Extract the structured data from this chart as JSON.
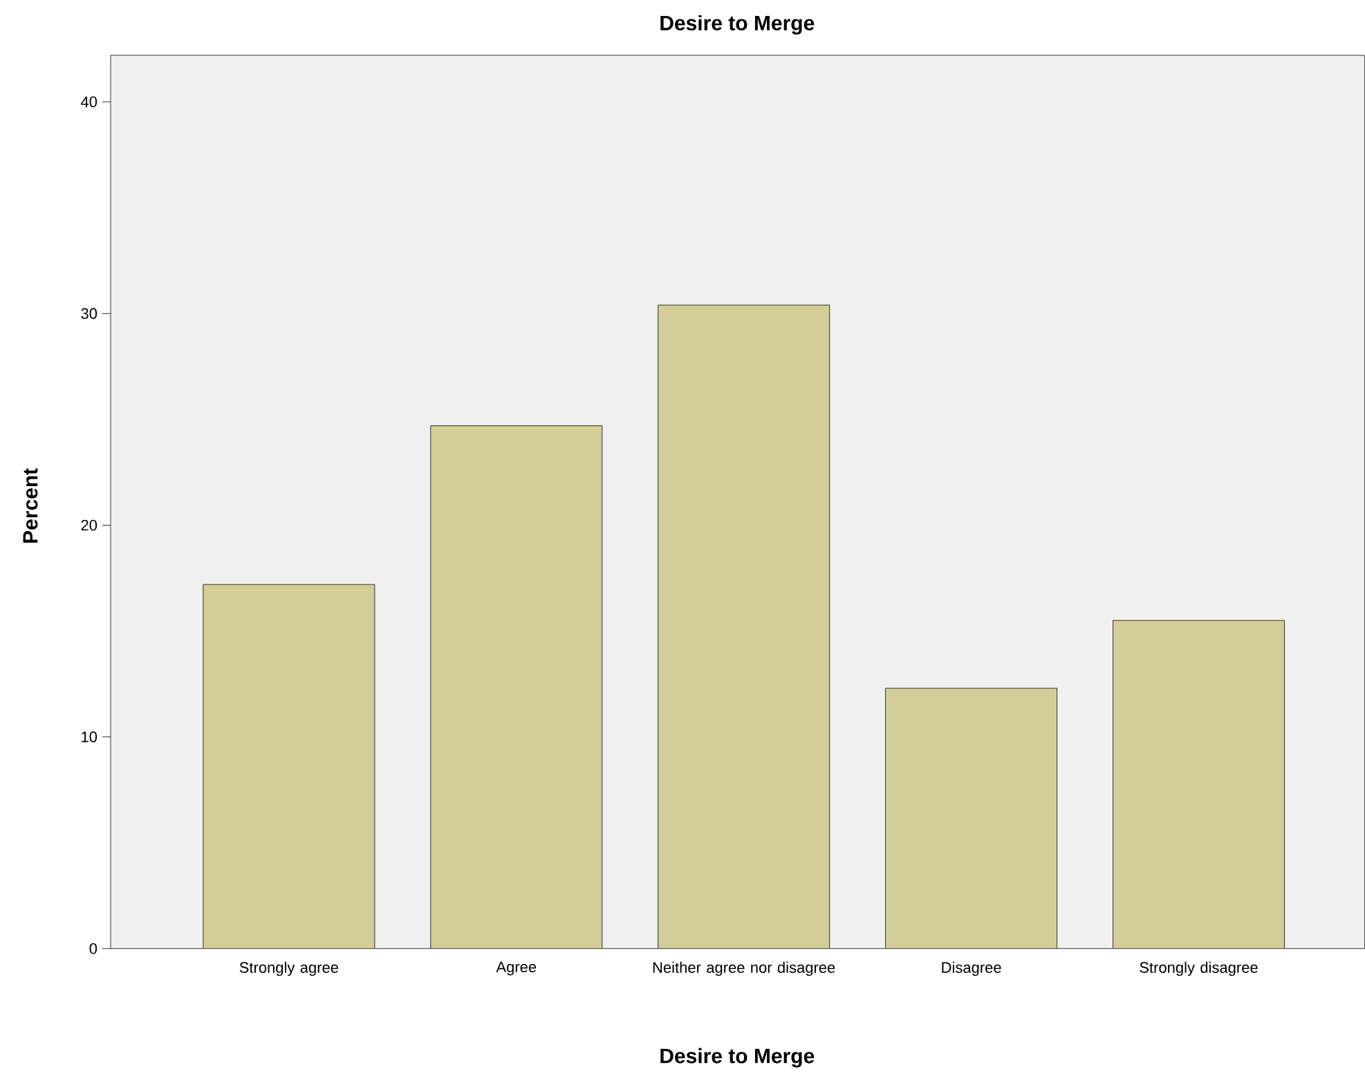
{
  "chart_data": {
    "type": "bar",
    "title": "Desire to Merge",
    "xlabel": "Desire to Merge",
    "ylabel": "Percent",
    "categories": [
      "Strongly agree",
      "Agree",
      "Neither agree nor disagree",
      "Disagree",
      "Strongly disagree"
    ],
    "values": [
      17.2,
      24.7,
      30.4,
      12.3,
      15.5
    ],
    "color": "#d3ce97",
    "ylim": [
      0,
      42.2
    ],
    "yticks": [
      0,
      10,
      20,
      30,
      40
    ]
  }
}
